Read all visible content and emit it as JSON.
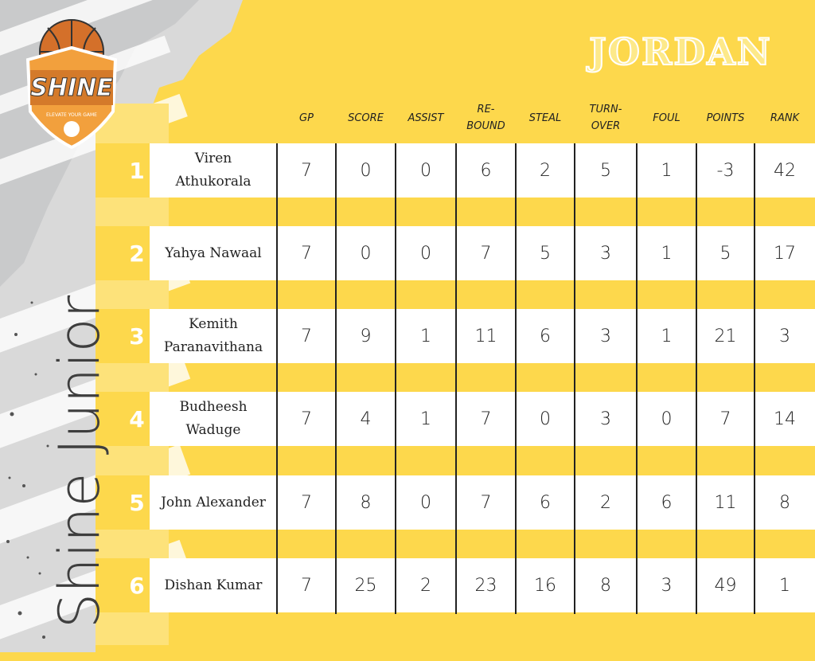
{
  "logo": {
    "text": "SHINE",
    "tagline": "ELEVATE YOUR GAME"
  },
  "title": "JORDAN",
  "side_text": "Shine Junior",
  "table": {
    "headers": [
      "GP",
      "SCORE",
      "ASSIST",
      "RE-\nBOUND",
      "STEAL",
      "TURN-\nOVER",
      "FOUL",
      "POINTS",
      "RANK"
    ],
    "rows": [
      {
        "number": "1",
        "name": "Viren\nAthukorala",
        "values": [
          "7",
          "0",
          "0",
          "6",
          "2",
          "5",
          "1",
          "-3",
          "42"
        ]
      },
      {
        "number": "2",
        "name": "Yahya Nawaal",
        "values": [
          "7",
          "0",
          "0",
          "7",
          "5",
          "3",
          "1",
          "5",
          "17"
        ]
      },
      {
        "number": "3",
        "name": "Kemith\nParanavithana",
        "values": [
          "7",
          "9",
          "1",
          "11",
          "6",
          "3",
          "1",
          "21",
          "3"
        ]
      },
      {
        "number": "4",
        "name": "Budheesh\nWaduge",
        "values": [
          "7",
          "4",
          "1",
          "7",
          "0",
          "3",
          "0",
          "7",
          "14"
        ]
      },
      {
        "number": "5",
        "name": "John Alexander",
        "values": [
          "7",
          "8",
          "0",
          "7",
          "6",
          "2",
          "6",
          "11",
          "8"
        ]
      },
      {
        "number": "6",
        "name": "Dishan Kumar",
        "values": [
          "7",
          "25",
          "2",
          "23",
          "16",
          "8",
          "3",
          "49",
          "1"
        ]
      }
    ]
  }
}
